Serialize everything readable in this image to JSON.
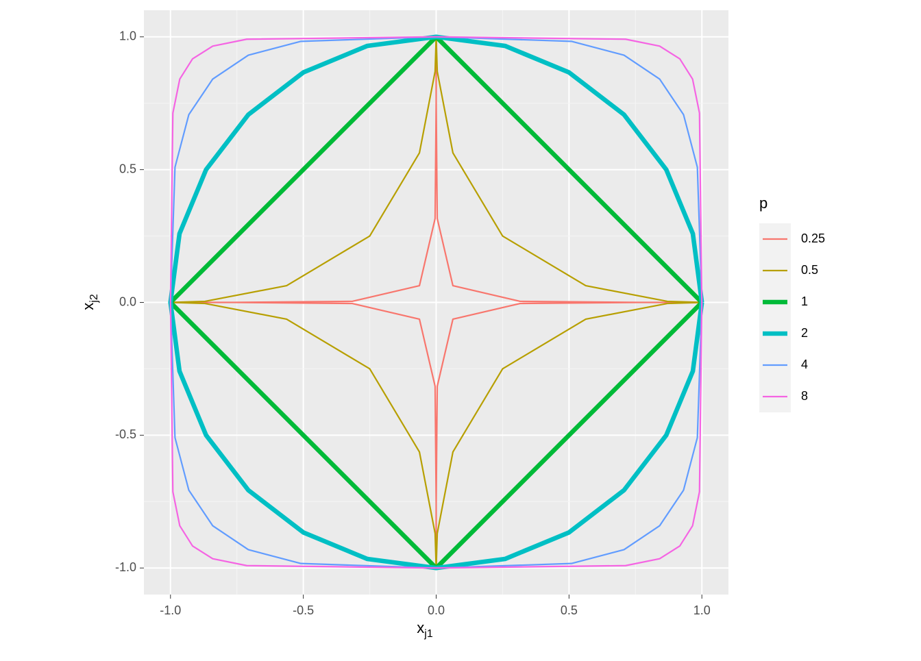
{
  "chart_data": {
    "type": "line",
    "x_label": {
      "text": "x",
      "sub": "j1"
    },
    "y_label": {
      "text": "x",
      "sub": "j2"
    },
    "legend_title": "p",
    "legend": "right",
    "grid": true,
    "xlim": [
      -1.1,
      1.1
    ],
    "ylim": [
      -1.1,
      1.1
    ],
    "xticks": [
      {
        "value": -1,
        "label": "-1.0"
      },
      {
        "value": -0.5,
        "label": "-0.5"
      },
      {
        "value": 0,
        "label": "0.0"
      },
      {
        "value": 0.5,
        "label": "0.5"
      },
      {
        "value": 1,
        "label": "1.0"
      }
    ],
    "yticks": [
      {
        "value": -1,
        "label": "-1.0"
      },
      {
        "value": -0.5,
        "label": "-0.5"
      },
      {
        "value": 0,
        "label": "0.0"
      },
      {
        "value": 0.5,
        "label": "0.5"
      },
      {
        "value": 1,
        "label": "1.0"
      }
    ],
    "series": [
      {
        "name": "0.25",
        "color": "#F8766D",
        "linewidth": 1,
        "x": [
          1,
          0.758,
          0.316,
          0.063,
          0.004,
          0,
          0,
          0,
          -0.004,
          -0.063,
          -0.316,
          -0.758,
          -1,
          -0.758,
          -0.316,
          -0.063,
          -0.004,
          0,
          0,
          0,
          0.004,
          0.063,
          0.316,
          0.758,
          1
        ],
        "values": [
          0,
          0,
          0.004,
          0.063,
          0.316,
          0.758,
          1,
          0.758,
          0.316,
          0.063,
          0.004,
          0,
          0,
          0,
          -0.004,
          -0.063,
          -0.316,
          -0.758,
          -1,
          -0.758,
          -0.316,
          -0.063,
          -0.004,
          0,
          0
        ]
      },
      {
        "name": "0.5",
        "color": "#B79F00",
        "linewidth": 1,
        "x": [
          1,
          0.87,
          0.563,
          0.25,
          0.063,
          0.004,
          0,
          -0.004,
          -0.063,
          -0.25,
          -0.563,
          -0.87,
          -1,
          -0.87,
          -0.563,
          -0.25,
          -0.063,
          -0.004,
          0,
          0.004,
          0.063,
          0.25,
          0.563,
          0.87,
          1
        ],
        "values": [
          0,
          0.004,
          0.063,
          0.25,
          0.563,
          0.87,
          1,
          0.87,
          0.563,
          0.25,
          0.063,
          0.004,
          0,
          -0.004,
          -0.063,
          -0.25,
          -0.563,
          -0.87,
          -1,
          -0.87,
          -0.563,
          -0.25,
          -0.063,
          -0.004,
          0
        ]
      },
      {
        "name": "1",
        "color": "#00BA38",
        "linewidth": 3,
        "x": [
          1,
          0,
          -1,
          0,
          1
        ],
        "values": [
          0,
          1,
          0,
          -1,
          0
        ]
      },
      {
        "name": "2",
        "color": "#00BFC4",
        "linewidth": 3,
        "x": [
          1,
          0.966,
          0.866,
          0.707,
          0.5,
          0.259,
          0,
          -0.259,
          -0.5,
          -0.707,
          -0.866,
          -0.966,
          -1,
          -0.966,
          -0.866,
          -0.707,
          -0.5,
          -0.259,
          0,
          0.259,
          0.5,
          0.707,
          0.866,
          0.966,
          1
        ],
        "values": [
          0,
          0.259,
          0.5,
          0.707,
          0.866,
          0.966,
          1,
          0.966,
          0.866,
          0.707,
          0.5,
          0.259,
          0,
          -0.259,
          -0.5,
          -0.707,
          -0.866,
          -0.966,
          -1,
          -0.966,
          -0.866,
          -0.707,
          -0.5,
          -0.259,
          0
        ]
      },
      {
        "name": "4",
        "color": "#619CFF",
        "linewidth": 1,
        "x": [
          1,
          0.983,
          0.931,
          0.841,
          0.707,
          0.509,
          0,
          -0.509,
          -0.707,
          -0.841,
          -0.931,
          -0.983,
          -1,
          -0.983,
          -0.931,
          -0.841,
          -0.707,
          -0.509,
          0,
          0.509,
          0.707,
          0.841,
          0.931,
          0.983,
          1
        ],
        "values": [
          0,
          0.509,
          0.707,
          0.841,
          0.931,
          0.983,
          1,
          0.983,
          0.931,
          0.841,
          0.707,
          0.509,
          0,
          -0.509,
          -0.707,
          -0.841,
          -0.931,
          -0.983,
          -1,
          -0.983,
          -0.931,
          -0.841,
          -0.707,
          -0.509,
          0
        ]
      },
      {
        "name": "8",
        "color": "#F564E3",
        "linewidth": 1,
        "x": [
          1,
          0.991,
          0.965,
          0.917,
          0.841,
          0.713,
          0,
          -0.713,
          -0.841,
          -0.917,
          -0.965,
          -0.991,
          -1,
          -0.991,
          -0.965,
          -0.917,
          -0.841,
          -0.713,
          0,
          0.713,
          0.841,
          0.917,
          0.965,
          0.991,
          1
        ],
        "values": [
          0,
          0.713,
          0.841,
          0.917,
          0.965,
          0.991,
          1,
          0.991,
          0.965,
          0.917,
          0.841,
          0.713,
          0,
          -0.713,
          -0.841,
          -0.917,
          -0.965,
          -0.991,
          -1,
          -0.991,
          -0.965,
          -0.917,
          -0.841,
          -0.713,
          0
        ]
      }
    ]
  }
}
